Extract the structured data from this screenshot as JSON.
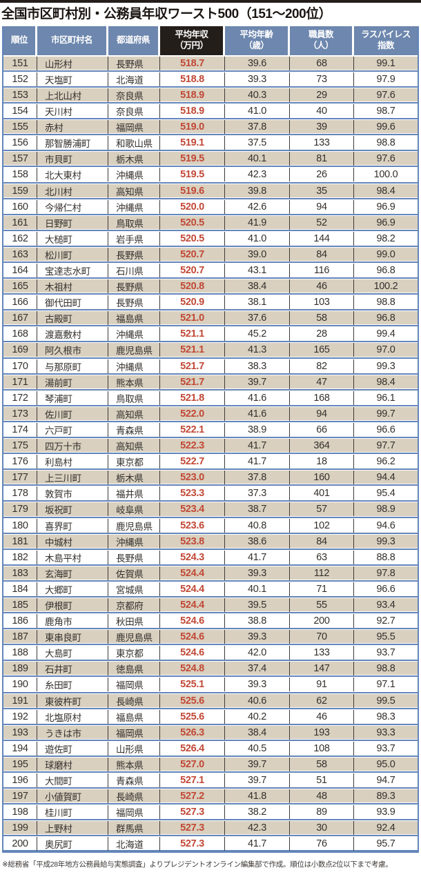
{
  "page": {
    "title": "全国市区町村別・公務員年収ワースト500（151〜200位）",
    "source_note": "※総務省「平成28年地方公務員給与実態調査」よりプレジデントオンライン編集部で作成。順位は小数点2位以下まで考慮。"
  },
  "colors": {
    "header_blue": "#6d87ae",
    "income_header_black": "#241e1a",
    "row_beige": "#d9d0bf",
    "row_white": "#ffffff",
    "divider_blue": "#6385ba",
    "income_red": "#c14836",
    "text_dark": "#332f2c"
  },
  "chart_data": {
    "type": "table",
    "title": "全国市区町村別・公務員年収ワースト500（151〜200位）",
    "columns": [
      {
        "key": "rank",
        "label": "順位"
      },
      {
        "key": "name",
        "label": "市区町村名"
      },
      {
        "key": "pref",
        "label": "都道府県"
      },
      {
        "key": "income",
        "label": "平均年収\n（万円）"
      },
      {
        "key": "age",
        "label": "平均年齢\n（歳）"
      },
      {
        "key": "staff",
        "label": "職員数\n（人）"
      },
      {
        "key": "laspeyres",
        "label": "ラスパイレス\n指数"
      }
    ],
    "rows": [
      [
        "151",
        "山形村",
        "長野県",
        "518.7",
        "39.6",
        "68",
        "99.1"
      ],
      [
        "152",
        "天塩町",
        "北海道",
        "518.8",
        "39.3",
        "73",
        "97.9"
      ],
      [
        "153",
        "上北山村",
        "奈良県",
        "518.9",
        "40.3",
        "29",
        "97.6"
      ],
      [
        "154",
        "天川村",
        "奈良県",
        "518.9",
        "41.0",
        "40",
        "98.7"
      ],
      [
        "155",
        "赤村",
        "福岡県",
        "519.0",
        "37.8",
        "39",
        "99.6"
      ],
      [
        "156",
        "那智勝浦町",
        "和歌山県",
        "519.1",
        "37.5",
        "133",
        "98.8"
      ],
      [
        "157",
        "市貝町",
        "栃木県",
        "519.5",
        "40.1",
        "81",
        "97.6"
      ],
      [
        "158",
        "北大東村",
        "沖縄県",
        "519.5",
        "42.3",
        "26",
        "100.0"
      ],
      [
        "159",
        "北川村",
        "高知県",
        "519.6",
        "39.8",
        "35",
        "98.4"
      ],
      [
        "160",
        "今帰仁村",
        "沖縄県",
        "520.0",
        "42.6",
        "94",
        "96.9"
      ],
      [
        "161",
        "日野町",
        "鳥取県",
        "520.5",
        "41.9",
        "52",
        "96.9"
      ],
      [
        "162",
        "大槌町",
        "岩手県",
        "520.5",
        "41.0",
        "144",
        "98.2"
      ],
      [
        "163",
        "松川町",
        "長野県",
        "520.7",
        "39.0",
        "84",
        "99.0"
      ],
      [
        "164",
        "宝達志水町",
        "石川県",
        "520.7",
        "43.1",
        "116",
        "96.8"
      ],
      [
        "165",
        "木祖村",
        "長野県",
        "520.8",
        "38.4",
        "46",
        "100.2"
      ],
      [
        "166",
        "御代田町",
        "長野県",
        "520.9",
        "38.1",
        "103",
        "98.8"
      ],
      [
        "167",
        "古殿町",
        "福島県",
        "521.0",
        "37.6",
        "58",
        "96.8"
      ],
      [
        "168",
        "渡嘉敷村",
        "沖縄県",
        "521.1",
        "45.2",
        "28",
        "99.4"
      ],
      [
        "169",
        "阿久根市",
        "鹿児島県",
        "521.1",
        "41.3",
        "165",
        "97.0"
      ],
      [
        "170",
        "与那原町",
        "沖縄県",
        "521.7",
        "38.3",
        "82",
        "99.3"
      ],
      [
        "171",
        "湯前町",
        "熊本県",
        "521.7",
        "39.7",
        "47",
        "98.4"
      ],
      [
        "172",
        "琴浦町",
        "鳥取県",
        "521.8",
        "41.6",
        "168",
        "96.1"
      ],
      [
        "173",
        "佐川町",
        "高知県",
        "522.0",
        "41.6",
        "94",
        "99.7"
      ],
      [
        "174",
        "六戸町",
        "青森県",
        "522.1",
        "38.9",
        "66",
        "96.6"
      ],
      [
        "175",
        "四万十市",
        "高知県",
        "522.3",
        "41.7",
        "364",
        "97.7"
      ],
      [
        "176",
        "利島村",
        "東京都",
        "522.7",
        "41.7",
        "18",
        "96.2"
      ],
      [
        "177",
        "上三川町",
        "栃木県",
        "523.0",
        "37.8",
        "160",
        "94.4"
      ],
      [
        "178",
        "敦賀市",
        "福井県",
        "523.3",
        "37.3",
        "401",
        "95.4"
      ],
      [
        "179",
        "坂祝町",
        "岐阜県",
        "523.4",
        "38.7",
        "57",
        "98.9"
      ],
      [
        "180",
        "喜界町",
        "鹿児島県",
        "523.6",
        "40.8",
        "102",
        "94.6"
      ],
      [
        "181",
        "中城村",
        "沖縄県",
        "523.8",
        "38.6",
        "84",
        "99.3"
      ],
      [
        "182",
        "木島平村",
        "長野県",
        "524.3",
        "41.7",
        "63",
        "88.8"
      ],
      [
        "183",
        "玄海町",
        "佐賀県",
        "524.4",
        "39.3",
        "112",
        "97.8"
      ],
      [
        "184",
        "大郷町",
        "宮城県",
        "524.4",
        "40.1",
        "71",
        "96.6"
      ],
      [
        "185",
        "伊根町",
        "京都府",
        "524.4",
        "39.5",
        "55",
        "93.4"
      ],
      [
        "186",
        "鹿角市",
        "秋田県",
        "524.6",
        "38.8",
        "200",
        "92.7"
      ],
      [
        "187",
        "東串良町",
        "鹿児島県",
        "524.6",
        "39.3",
        "70",
        "95.5"
      ],
      [
        "188",
        "大島町",
        "東京都",
        "524.6",
        "42.0",
        "133",
        "93.7"
      ],
      [
        "189",
        "石井町",
        "徳島県",
        "524.8",
        "37.4",
        "147",
        "98.8"
      ],
      [
        "190",
        "糸田町",
        "福岡県",
        "525.1",
        "39.3",
        "91",
        "97.1"
      ],
      [
        "191",
        "東彼杵町",
        "長崎県",
        "525.6",
        "40.6",
        "62",
        "99.5"
      ],
      [
        "192",
        "北塩原村",
        "福島県",
        "525.6",
        "40.2",
        "46",
        "98.3"
      ],
      [
        "193",
        "うきは市",
        "福岡県",
        "526.3",
        "38.4",
        "193",
        "93.3"
      ],
      [
        "194",
        "遊佐町",
        "山形県",
        "526.4",
        "40.5",
        "108",
        "93.7"
      ],
      [
        "195",
        "球磨村",
        "熊本県",
        "527.0",
        "39.7",
        "58",
        "95.0"
      ],
      [
        "196",
        "大間町",
        "青森県",
        "527.1",
        "39.7",
        "51",
        "94.7"
      ],
      [
        "197",
        "小値賀町",
        "長崎県",
        "527.2",
        "41.8",
        "48",
        "89.3"
      ],
      [
        "198",
        "桂川町",
        "福岡県",
        "527.3",
        "38.2",
        "89",
        "93.9"
      ],
      [
        "199",
        "上野村",
        "群馬県",
        "527.3",
        "42.3",
        "30",
        "92.4"
      ],
      [
        "200",
        "奥尻町",
        "北海道",
        "527.3",
        "41.7",
        "76",
        "95.7"
      ]
    ]
  }
}
